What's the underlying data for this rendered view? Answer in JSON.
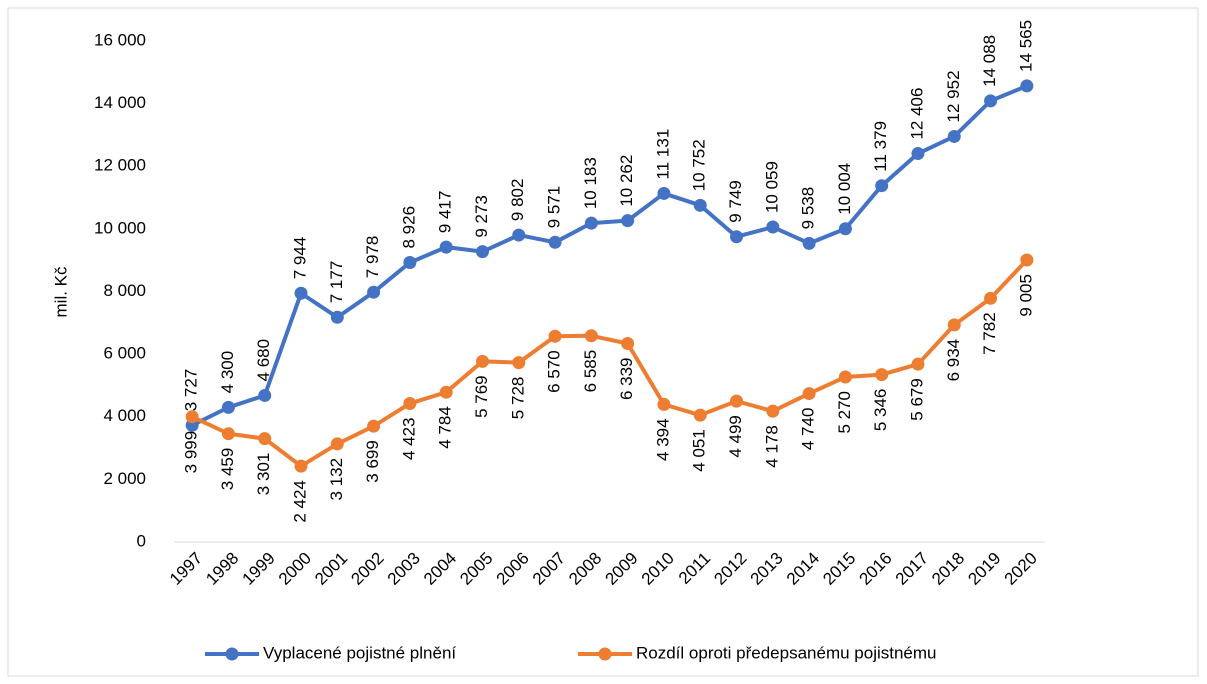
{
  "chart_data": {
    "type": "line",
    "y_axis_label": "mil. Kč",
    "categories": [
      "1997",
      "1998",
      "1999",
      "2000",
      "2001",
      "2002",
      "2003",
      "2004",
      "2005",
      "2006",
      "2007",
      "2008",
      "2009",
      "2010",
      "2011",
      "2012",
      "2013",
      "2014",
      "2015",
      "2016",
      "2017",
      "2018",
      "2019",
      "2020"
    ],
    "series": [
      {
        "name": "Vyplacené pojistné plnění",
        "color": "#4472c4",
        "values": [
          3727,
          4300,
          4680,
          7944,
          7177,
          7978,
          8926,
          9417,
          9273,
          9802,
          9571,
          10183,
          10262,
          11131,
          10752,
          9749,
          10059,
          9538,
          10004,
          11379,
          12406,
          12952,
          14088,
          14565
        ],
        "value_labels": [
          "3 727",
          "4 300",
          "4 680",
          "7 944",
          "7 177",
          "7 978",
          "8 926",
          "9 417",
          "9 273",
          "9 802",
          "9 571",
          "10 183",
          "10 262",
          "11 131",
          "10 752",
          "9 749",
          "10 059",
          "9 538",
          "10 004",
          "11 379",
          "12 406",
          "12 952",
          "14 088",
          "14 565"
        ]
      },
      {
        "name": "Rozdíl oproti předepsanému pojistnému",
        "color": "#ed7d31",
        "values": [
          3999,
          3459,
          3301,
          2424,
          3132,
          3699,
          4423,
          4784,
          5769,
          5728,
          6570,
          6585,
          6339,
          4394,
          4051,
          4499,
          4178,
          4740,
          5270,
          5346,
          5679,
          6934,
          7782,
          9005
        ],
        "value_labels": [
          "3 999",
          "3 459",
          "3 301",
          "2 424",
          "3 132",
          "3 699",
          "4 423",
          "4 784",
          "5 769",
          "5 728",
          "6 570",
          "6 585",
          "6 339",
          "4 394",
          "4 051",
          "4 499",
          "4 178",
          "4 740",
          "5 270",
          "5 346",
          "5 679",
          "6 934",
          "7 782",
          "9 005"
        ]
      }
    ],
    "ylim": [
      0,
      16000
    ],
    "yticks": [
      0,
      {
        "value": 2000,
        "label": "2 000"
      },
      {
        "value": 4000,
        "label": "4 000"
      },
      {
        "value": 6000,
        "label": "6 000"
      },
      {
        "value": 8000,
        "label": "8 000"
      },
      {
        "value": 10000,
        "label": "10 000"
      },
      {
        "value": 12000,
        "label": "12 000"
      },
      {
        "value": 14000,
        "label": "14 000"
      },
      {
        "value": 16000,
        "label": "16 000"
      }
    ],
    "legend": "bottom"
  }
}
